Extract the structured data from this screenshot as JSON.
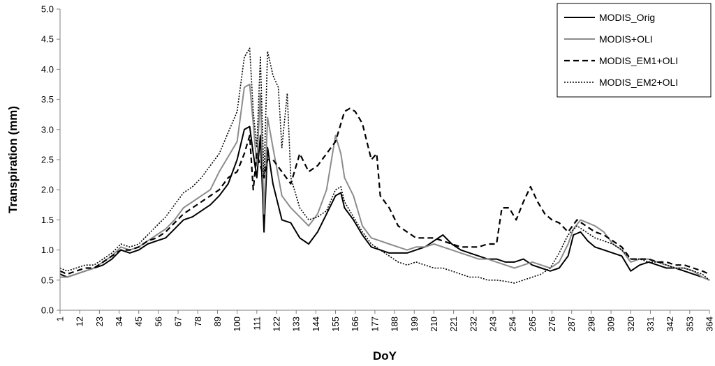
{
  "chart_data": {
    "type": "line",
    "title": "",
    "xlabel": "DoY",
    "ylabel": "Transpiration (mm)",
    "xlim": [
      1,
      364
    ],
    "ylim": [
      0.0,
      5.0
    ],
    "y_ticks": [
      "0.0",
      "0.5",
      "1.0",
      "1.5",
      "2.0",
      "2.5",
      "3.0",
      "3.5",
      "4.0",
      "4.5",
      "5.0"
    ],
    "x_ticks": [
      "1",
      "12",
      "23",
      "34",
      "45",
      "56",
      "67",
      "78",
      "89",
      "100",
      "111",
      "122",
      "133",
      "144",
      "155",
      "166",
      "177",
      "188",
      "199",
      "210",
      "221",
      "232",
      "243",
      "254",
      "265",
      "276",
      "287",
      "298",
      "309",
      "320",
      "331",
      "342",
      "353",
      "364"
    ],
    "grid": false,
    "legend_position": "top-right",
    "series": [
      {
        "name": "MODIS_Orig",
        "color": "#000000",
        "dash": "solid",
        "x": [
          1,
          5,
          10,
          15,
          20,
          25,
          30,
          35,
          40,
          45,
          50,
          55,
          60,
          65,
          70,
          75,
          80,
          85,
          90,
          95,
          100,
          104,
          107,
          109,
          111,
          113,
          115,
          117,
          120,
          125,
          130,
          135,
          140,
          145,
          150,
          155,
          158,
          160,
          165,
          170,
          175,
          180,
          185,
          190,
          195,
          200,
          205,
          210,
          215,
          220,
          225,
          230,
          235,
          240,
          245,
          250,
          255,
          260,
          265,
          270,
          275,
          280,
          285,
          288,
          292,
          296,
          300,
          305,
          310,
          315,
          320,
          325,
          330,
          335,
          340,
          345,
          350,
          355,
          360,
          364
        ],
        "values": [
          0.6,
          0.55,
          0.6,
          0.65,
          0.7,
          0.75,
          0.85,
          1.0,
          0.95,
          1.0,
          1.1,
          1.15,
          1.2,
          1.35,
          1.5,
          1.55,
          1.65,
          1.75,
          1.9,
          2.1,
          2.5,
          3.0,
          3.05,
          2.6,
          2.2,
          2.9,
          1.3,
          2.7,
          2.1,
          1.5,
          1.45,
          1.2,
          1.1,
          1.3,
          1.6,
          1.9,
          1.95,
          1.7,
          1.5,
          1.25,
          1.05,
          1.0,
          0.95,
          0.95,
          0.95,
          1.0,
          1.05,
          1.15,
          1.25,
          1.1,
          1.0,
          0.95,
          0.9,
          0.85,
          0.85,
          0.8,
          0.8,
          0.85,
          0.75,
          0.7,
          0.65,
          0.7,
          0.9,
          1.25,
          1.3,
          1.15,
          1.05,
          1.0,
          0.95,
          0.9,
          0.65,
          0.75,
          0.8,
          0.75,
          0.7,
          0.7,
          0.65,
          0.6,
          0.55,
          0.5
        ]
      },
      {
        "name": "MODIS+OLI",
        "color": "#8c8c8c",
        "dash": "solid",
        "x": [
          1,
          5,
          10,
          15,
          20,
          25,
          30,
          35,
          40,
          45,
          50,
          55,
          60,
          65,
          70,
          75,
          80,
          85,
          90,
          95,
          100,
          104,
          107,
          109,
          111,
          113,
          115,
          117,
          120,
          125,
          130,
          135,
          140,
          145,
          150,
          155,
          158,
          160,
          165,
          170,
          175,
          180,
          185,
          190,
          195,
          200,
          205,
          210,
          215,
          220,
          225,
          230,
          235,
          240,
          245,
          250,
          255,
          260,
          265,
          270,
          275,
          280,
          285,
          288,
          292,
          296,
          300,
          305,
          310,
          315,
          320,
          325,
          330,
          335,
          340,
          345,
          350,
          355,
          360,
          364
        ],
        "values": [
          0.55,
          0.55,
          0.6,
          0.65,
          0.7,
          0.8,
          0.9,
          1.05,
          1.0,
          1.05,
          1.15,
          1.25,
          1.35,
          1.5,
          1.7,
          1.8,
          1.9,
          2.0,
          2.3,
          2.55,
          2.8,
          3.7,
          3.75,
          3.1,
          2.4,
          3.6,
          1.6,
          3.2,
          2.7,
          1.9,
          1.7,
          1.55,
          1.4,
          1.6,
          2.0,
          2.9,
          2.6,
          2.2,
          1.9,
          1.4,
          1.2,
          1.15,
          1.1,
          1.05,
          1.0,
          1.05,
          1.05,
          1.1,
          1.05,
          1.0,
          0.95,
          0.9,
          0.85,
          0.85,
          0.8,
          0.75,
          0.7,
          0.75,
          0.8,
          0.75,
          0.7,
          0.8,
          1.1,
          1.35,
          1.5,
          1.45,
          1.4,
          1.3,
          1.1,
          1.0,
          0.8,
          0.85,
          0.85,
          0.8,
          0.75,
          0.7,
          0.7,
          0.65,
          0.55,
          0.5
        ]
      },
      {
        "name": "MODIS_EM1+OLI",
        "color": "#000000",
        "dash": "dashed",
        "x": [
          1,
          5,
          10,
          15,
          20,
          25,
          30,
          35,
          40,
          45,
          50,
          55,
          60,
          65,
          70,
          75,
          80,
          85,
          90,
          95,
          100,
          104,
          107,
          109,
          111,
          113,
          115,
          117,
          120,
          125,
          130,
          135,
          140,
          145,
          150,
          155,
          160,
          163,
          166,
          170,
          175,
          178,
          180,
          185,
          190,
          195,
          200,
          205,
          210,
          215,
          220,
          225,
          230,
          235,
          240,
          245,
          248,
          252,
          256,
          260,
          264,
          268,
          272,
          276,
          280,
          285,
          290,
          295,
          300,
          305,
          310,
          315,
          320,
          325,
          330,
          335,
          340,
          345,
          350,
          355,
          360,
          364
        ],
        "values": [
          0.65,
          0.6,
          0.65,
          0.7,
          0.7,
          0.8,
          0.9,
          1.0,
          1.0,
          1.05,
          1.15,
          1.2,
          1.3,
          1.45,
          1.6,
          1.7,
          1.8,
          1.9,
          2.0,
          2.2,
          2.3,
          2.6,
          2.9,
          2.0,
          2.6,
          2.4,
          2.2,
          2.5,
          2.5,
          2.3,
          2.1,
          2.6,
          2.3,
          2.4,
          2.6,
          2.8,
          3.3,
          3.35,
          3.3,
          3.1,
          2.5,
          2.6,
          1.9,
          1.7,
          1.4,
          1.3,
          1.2,
          1.2,
          1.2,
          1.15,
          1.1,
          1.05,
          1.05,
          1.05,
          1.1,
          1.1,
          1.7,
          1.7,
          1.5,
          1.8,
          2.05,
          1.8,
          1.6,
          1.5,
          1.45,
          1.3,
          1.5,
          1.4,
          1.3,
          1.25,
          1.15,
          1.05,
          0.85,
          0.85,
          0.85,
          0.8,
          0.8,
          0.75,
          0.75,
          0.7,
          0.65,
          0.6
        ]
      },
      {
        "name": "MODIS_EM2+OLI",
        "color": "#000000",
        "dash": "dotted",
        "x": [
          1,
          5,
          10,
          15,
          20,
          25,
          30,
          35,
          40,
          45,
          50,
          55,
          60,
          65,
          70,
          75,
          80,
          85,
          90,
          95,
          100,
          104,
          107,
          109,
          111,
          113,
          115,
          117,
          120,
          123,
          125,
          128,
          130,
          135,
          140,
          145,
          150,
          155,
          158,
          160,
          165,
          170,
          175,
          180,
          185,
          190,
          195,
          200,
          205,
          210,
          215,
          220,
          225,
          230,
          235,
          240,
          245,
          250,
          255,
          260,
          265,
          270,
          275,
          280,
          285,
          290,
          295,
          300,
          305,
          310,
          315,
          320,
          325,
          330,
          335,
          340,
          345,
          350,
          355,
          360,
          364
        ],
        "values": [
          0.7,
          0.65,
          0.7,
          0.75,
          0.75,
          0.85,
          0.95,
          1.1,
          1.05,
          1.1,
          1.25,
          1.4,
          1.55,
          1.75,
          1.95,
          2.05,
          2.2,
          2.4,
          2.6,
          2.95,
          3.3,
          4.2,
          4.35,
          3.3,
          2.7,
          4.2,
          2.2,
          4.3,
          3.9,
          3.7,
          2.7,
          3.6,
          2.2,
          1.7,
          1.5,
          1.55,
          1.65,
          2.0,
          2.05,
          1.8,
          1.55,
          1.3,
          1.1,
          1.0,
          0.9,
          0.8,
          0.75,
          0.8,
          0.75,
          0.7,
          0.7,
          0.65,
          0.6,
          0.55,
          0.55,
          0.5,
          0.5,
          0.48,
          0.45,
          0.5,
          0.55,
          0.6,
          0.7,
          0.95,
          1.25,
          1.4,
          1.3,
          1.2,
          1.15,
          1.1,
          1.0,
          0.85,
          0.85,
          0.8,
          0.8,
          0.75,
          0.7,
          0.7,
          0.65,
          0.6,
          0.5
        ]
      }
    ]
  }
}
